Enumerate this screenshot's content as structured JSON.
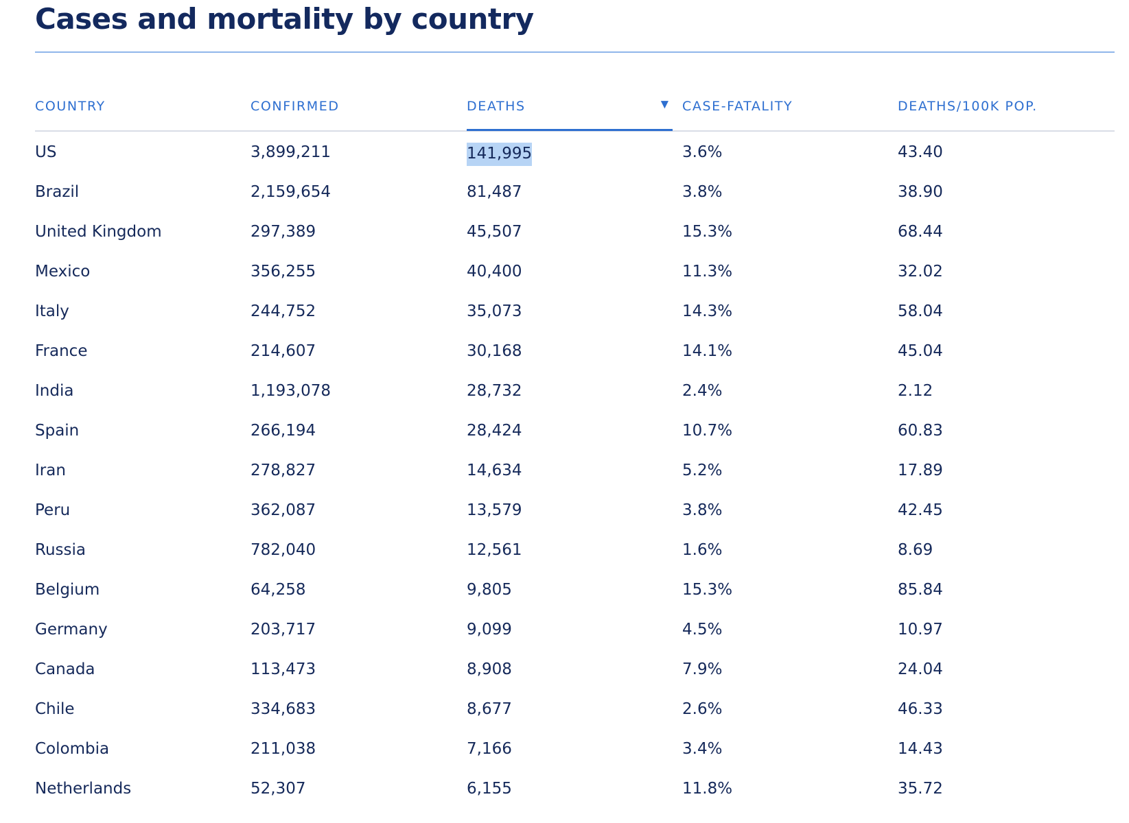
{
  "page": {
    "title": "Cases and mortality by country"
  },
  "table": {
    "sort_indicator": "▼",
    "headers": [
      "COUNTRY",
      "CONFIRMED",
      "DEATHS",
      "CASE-FATALITY",
      "DEATHS/100K POP."
    ],
    "selected_cell": "141,995",
    "rows": [
      [
        "US",
        "3,899,211",
        "141,995",
        "3.6%",
        "43.40"
      ],
      [
        "Brazil",
        "2,159,654",
        "81,487",
        "3.8%",
        "38.90"
      ],
      [
        "United Kingdom",
        "297,389",
        "45,507",
        "15.3%",
        "68.44"
      ],
      [
        "Mexico",
        "356,255",
        "40,400",
        "11.3%",
        "32.02"
      ],
      [
        "Italy",
        "244,752",
        "35,073",
        "14.3%",
        "58.04"
      ],
      [
        "France",
        "214,607",
        "30,168",
        "14.1%",
        "45.04"
      ],
      [
        "India",
        "1,193,078",
        "28,732",
        "2.4%",
        "2.12"
      ],
      [
        "Spain",
        "266,194",
        "28,424",
        "10.7%",
        "60.83"
      ],
      [
        "Iran",
        "278,827",
        "14,634",
        "5.2%",
        "17.89"
      ],
      [
        "Peru",
        "362,087",
        "13,579",
        "3.8%",
        "42.45"
      ],
      [
        "Russia",
        "782,040",
        "12,561",
        "1.6%",
        "8.69"
      ],
      [
        "Belgium",
        "64,258",
        "9,805",
        "15.3%",
        "85.84"
      ],
      [
        "Germany",
        "203,717",
        "9,099",
        "4.5%",
        "10.97"
      ],
      [
        "Canada",
        "113,473",
        "8,908",
        "7.9%",
        "24.04"
      ],
      [
        "Chile",
        "334,683",
        "8,677",
        "2.6%",
        "46.33"
      ],
      [
        "Colombia",
        "211,038",
        "7,166",
        "3.4%",
        "14.43"
      ],
      [
        "Netherlands",
        "52,307",
        "6,155",
        "11.8%",
        "35.72"
      ]
    ]
  },
  "colors": {
    "title": "#13295e",
    "header": "#2e6fd0",
    "text": "#15295a",
    "title_rule": "#8fb6ea",
    "selection": "#b7d4f5"
  }
}
